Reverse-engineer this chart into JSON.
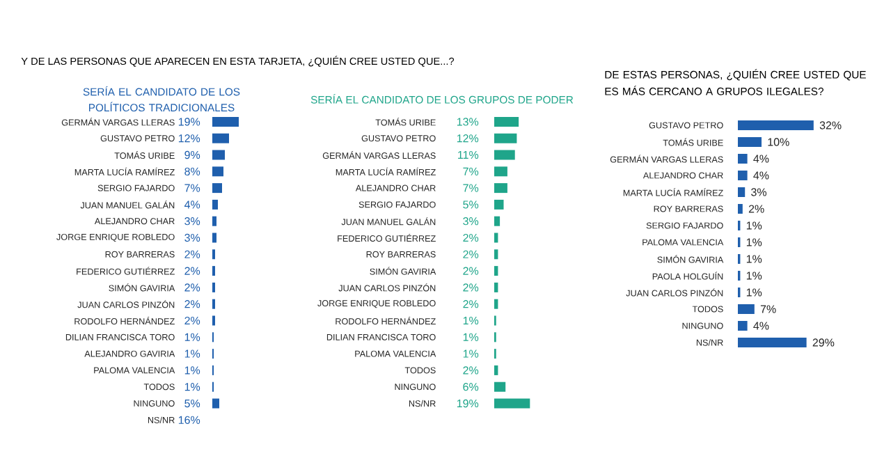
{
  "chart_data": [
    {
      "type": "bar",
      "orientation": "horizontal",
      "title": "Y DE LAS PERSONAS QUE APARECEN EN ESTA TARJETA, ¿QUIÉN CREE USTED QUE...?",
      "subtitle": "SERÍA EL CANDIDATO DE LOS POLÍTICOS TRADICIONALES",
      "color": "#1f5fad",
      "categories": [
        "GERMÁN VARGAS LLERAS",
        "GUSTAVO PETRO",
        "TOMÁS URIBE",
        "MARTA LUCÍA RAMÍREZ",
        "SERGIO FAJARDO",
        "JUAN MANUEL GALÁN",
        "ALEJANDRO CHAR",
        "JORGE ENRIQUE ROBLEDO",
        "ROY BARRERAS",
        "FEDERICO GUTIÉRREZ",
        "SIMÓN GAVIRIA",
        "JUAN CARLOS PINZÓN",
        "RODOLFO HERNÁNDEZ",
        "DILIAN FRANCISCA TORO",
        "ALEJANDRO GAVIRIA",
        "PALOMA VALENCIA",
        "TODOS",
        "NINGUNO",
        "NS/NR"
      ],
      "values": [
        19,
        12,
        9,
        8,
        7,
        4,
        3,
        3,
        2,
        2,
        2,
        2,
        2,
        1,
        1,
        1,
        1,
        5,
        null
      ],
      "value_labels": [
        "19%",
        "12%",
        "9%",
        "8%",
        "7%",
        "4%",
        "3%",
        "3%",
        "2%",
        "2%",
        "2%",
        "2%",
        "2%",
        "1%",
        "1%",
        "1%",
        "1%",
        "5%",
        "16%"
      ]
    },
    {
      "type": "bar",
      "orientation": "horizontal",
      "title": "SERÍA EL CANDIDATO DE LOS GRUPOS DE PODER",
      "color": "#1fa58a",
      "categories": [
        "TOMÁS URIBE",
        "GUSTAVO PETRO",
        "GERMÁN VARGAS LLERAS",
        "MARTA LUCÍA RAMÍREZ",
        "ALEJANDRO CHAR",
        "SERGIO FAJARDO",
        "JUAN MANUEL GALÁN",
        "FEDERICO GUTIÉRREZ",
        "ROY BARRERAS",
        "SIMÓN GAVIRIA",
        "JUAN CARLOS PINZÓN",
        "JORGE ENRIQUE ROBLEDO",
        "RODOLFO HERNÁNDEZ",
        "DILIAN FRANCISCA TORO",
        "PALOMA VALENCIA",
        "TODOS",
        "NINGUNO",
        "NS/NR"
      ],
      "values": [
        13,
        12,
        11,
        7,
        7,
        5,
        3,
        2,
        2,
        2,
        2,
        2,
        1,
        1,
        1,
        2,
        6,
        19
      ],
      "value_labels": [
        "13%",
        "12%",
        "11%",
        "7%",
        "7%",
        "5%",
        "3%",
        "2%",
        "2%",
        "2%",
        "2%",
        "2%",
        "1%",
        "1%",
        "1%",
        "2%",
        "6%",
        "19%"
      ]
    },
    {
      "type": "bar",
      "orientation": "horizontal",
      "title": "DE ESTAS PERSONAS, ¿QUIÉN CREE USTED QUE ES MÁS CERCANO A GRUPOS ILEGALES?",
      "color": "#1f5fad",
      "categories": [
        "GUSTAVO PETRO",
        "TOMÁS URIBE",
        "GERMÁN VARGAS LLERAS",
        "ALEJANDRO CHAR",
        "MARTA LUCÍA RAMÍREZ",
        "ROY BARRERAS",
        "SERGIO FAJARDO",
        "PALOMA VALENCIA",
        "SIMÓN GAVIRIA",
        "PAOLA HOLGUÍN",
        "JUAN CARLOS PINZÓN",
        "TODOS",
        "NINGUNO",
        "NS/NR"
      ],
      "values": [
        32,
        10,
        4,
        4,
        3,
        2,
        1,
        1,
        1,
        1,
        1,
        7,
        4,
        29
      ],
      "value_labels": [
        "32%",
        "10%",
        "4%",
        "4%",
        "3%",
        "2%",
        "1%",
        "1%",
        "1%",
        "1%",
        "1%",
        "7%",
        "4%",
        "29%"
      ]
    }
  ]
}
